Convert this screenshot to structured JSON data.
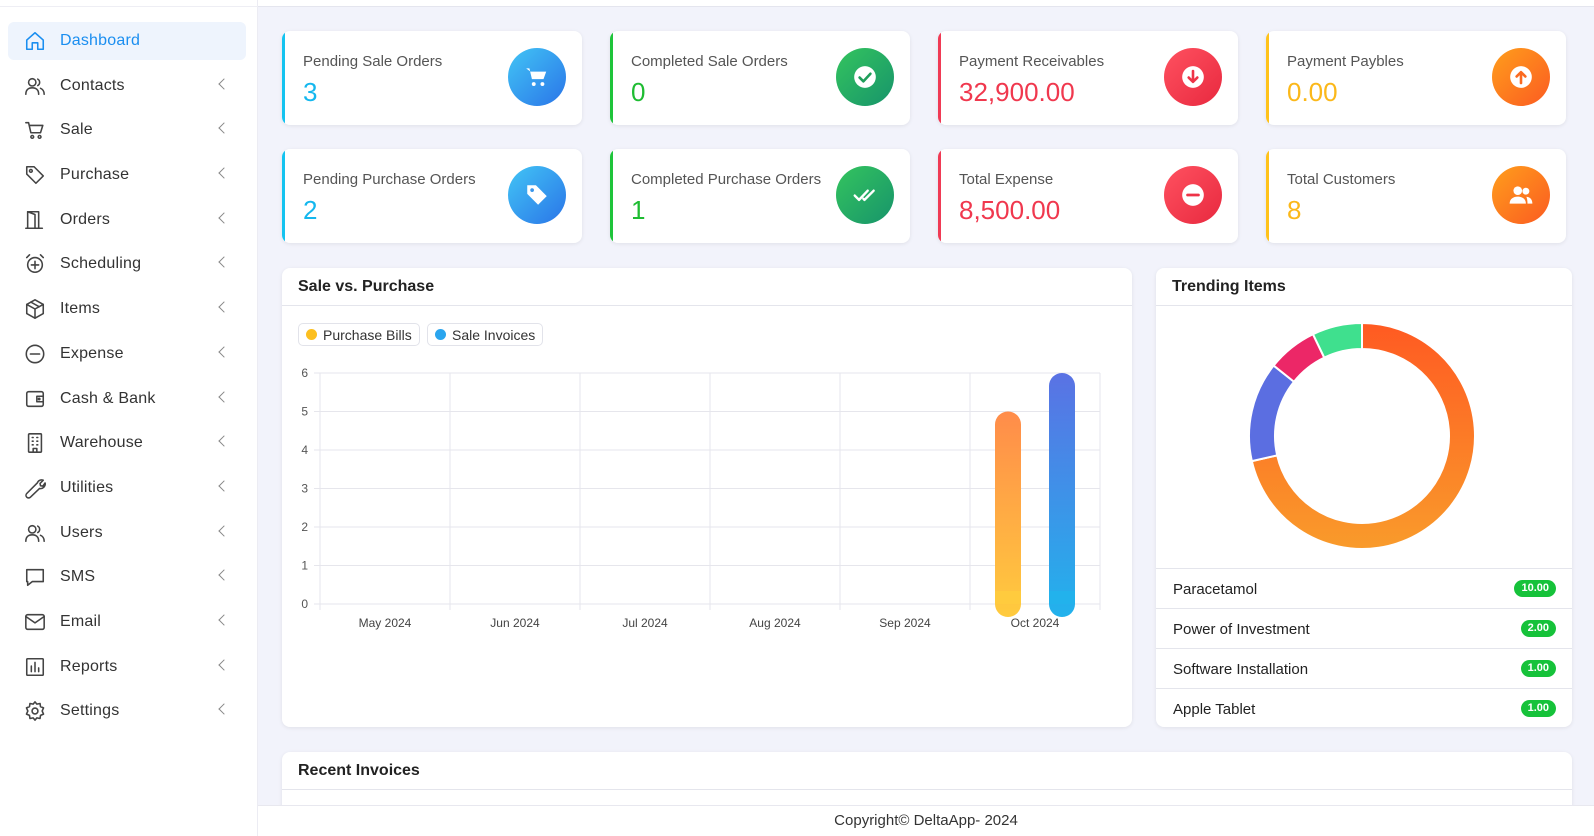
{
  "sidebar": {
    "items": [
      {
        "label": "Dashboard",
        "icon": "home-icon",
        "active": true
      },
      {
        "label": "Contacts",
        "icon": "users-icon"
      },
      {
        "label": "Sale",
        "icon": "cart-icon"
      },
      {
        "label": "Purchase",
        "icon": "tag-icon"
      },
      {
        "label": "Orders",
        "icon": "door-icon"
      },
      {
        "label": "Scheduling",
        "icon": "alarm-icon"
      },
      {
        "label": "Items",
        "icon": "box-icon"
      },
      {
        "label": "Expense",
        "icon": "minus-circle-icon"
      },
      {
        "label": "Cash & Bank",
        "icon": "wallet-icon"
      },
      {
        "label": "Warehouse",
        "icon": "building-icon"
      },
      {
        "label": "Utilities",
        "icon": "wrench-icon"
      },
      {
        "label": "Users",
        "icon": "user-group-icon"
      },
      {
        "label": "SMS",
        "icon": "message-icon"
      },
      {
        "label": "Email",
        "icon": "mail-icon"
      },
      {
        "label": "Reports",
        "icon": "bar-chart-icon"
      },
      {
        "label": "Settings",
        "icon": "gear-icon"
      }
    ]
  },
  "stats": {
    "pending_sale_orders": {
      "label": "Pending Sale Orders",
      "value": "3",
      "icon": "cart-icon"
    },
    "completed_sale_orders": {
      "label": "Completed Sale Orders",
      "value": "0",
      "icon": "check-circle-icon"
    },
    "payment_receivables": {
      "label": "Payment Receivables",
      "value": "32,900.00",
      "icon": "arrow-down-circle-icon"
    },
    "payment_paybles": {
      "label": "Payment Paybles",
      "value": "0.00",
      "icon": "arrow-up-circle-icon"
    },
    "pending_purchase_orders": {
      "label": "Pending Purchase Orders",
      "value": "2",
      "icon": "tag-icon"
    },
    "completed_purchase_orders": {
      "label": "Completed Purchase Orders",
      "value": "1",
      "icon": "double-check-icon"
    },
    "total_expense": {
      "label": "Total Expense",
      "value": "8,500.00",
      "icon": "minus-circle-icon"
    },
    "total_customers": {
      "label": "Total Customers",
      "value": "8",
      "icon": "users-icon"
    }
  },
  "sale_purchase": {
    "title": "Sale vs. Purchase",
    "legend": {
      "purchase": "Purchase Bills",
      "sale": "Sale Invoices"
    }
  },
  "trending": {
    "title": "Trending Items",
    "items": [
      {
        "name": "Paracetamol",
        "qty": "10.00"
      },
      {
        "name": "Power of Investment",
        "qty": "2.00"
      },
      {
        "name": "Software Installation",
        "qty": "1.00"
      },
      {
        "name": "Apple Tablet",
        "qty": "1.00"
      }
    ]
  },
  "recent_invoices": {
    "title": "Recent Invoices"
  },
  "footer": {
    "text": "Copyright© DeltaApp- 2024"
  },
  "colors": {
    "accent": "#1a8ef0",
    "purchase": "#fcbf2b",
    "sale": "#29a6ee",
    "badge": "#16c23a",
    "donut": [
      "#fd6a1f",
      "#5b6ee1",
      "#ec2767",
      "#3fe08e"
    ]
  },
  "chart_data": [
    {
      "type": "bar",
      "title": "Sale vs. Purchase",
      "categories": [
        "May 2024",
        "Jun 2024",
        "Jul 2024",
        "Aug 2024",
        "Sep 2024",
        "Oct 2024"
      ],
      "series": [
        {
          "name": "Purchase Bills",
          "values": [
            0,
            0,
            0,
            0,
            0,
            5
          ],
          "color": "#fcbf2b"
        },
        {
          "name": "Sale Invoices",
          "values": [
            0,
            0,
            0,
            0,
            0,
            6
          ],
          "color": "#29a6ee"
        }
      ],
      "ylim": [
        0,
        6
      ],
      "yticks": [
        "0",
        "1",
        "2",
        "3",
        "4",
        "5",
        "6"
      ],
      "grid": true,
      "legend": "top-left"
    },
    {
      "type": "pie",
      "title": "Trending Items",
      "donut": true,
      "labels": [
        "Paracetamol",
        "Power of Investment",
        "Software Installation",
        "Apple Tablet"
      ],
      "values": [
        10,
        2,
        1,
        1
      ],
      "colors": [
        "#fd6a1f",
        "#5b6ee1",
        "#ec2767",
        "#3fe08e"
      ]
    }
  ]
}
